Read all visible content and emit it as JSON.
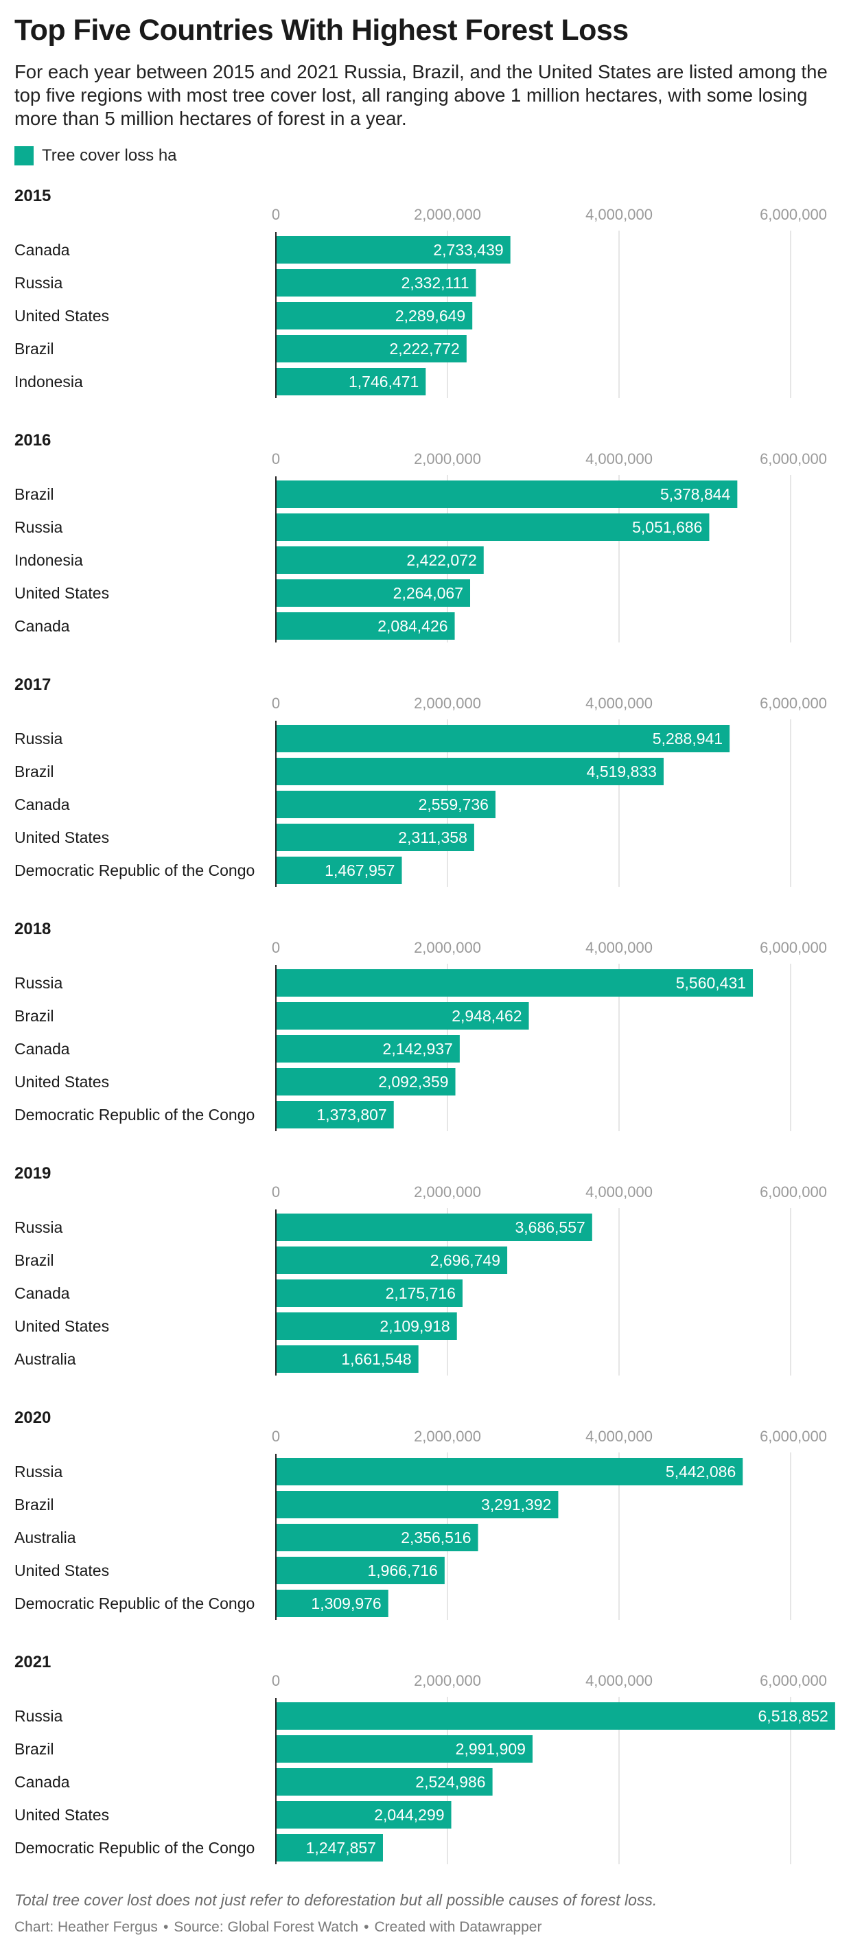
{
  "title": "Top Five Countries With Highest Forest Loss",
  "subtitle": "For each year between 2015 and 2021 Russia, Brazil, and the United States are listed among the top five regions with most tree cover lost, all ranging above 1 million hectares, with some losing more than 5 million hectares of forest in a year.",
  "legend": {
    "label": "Tree cover loss ha",
    "color": "#0aac91"
  },
  "footnote": "Total tree cover lost does not just refer to deforestation but all possible causes of forest loss.",
  "credits": {
    "chart": "Chart: Heather Fergus",
    "source": "Source: Global Forest Watch",
    "tool": "Created with Datawrapper",
    "separator": "•"
  },
  "chart_data": [
    {
      "type": "bar",
      "title": "2015",
      "xlim": [
        0,
        6000000
      ],
      "ticks": [
        0,
        2000000,
        4000000,
        6000000
      ],
      "tick_labels": [
        "0",
        "2,000,000",
        "4,000,000",
        "6,000,000"
      ],
      "categories": [
        "Canada",
        "Russia",
        "United States",
        "Brazil",
        "Indonesia"
      ],
      "values": [
        2733439,
        2332111,
        2289649,
        2222772,
        1746471
      ],
      "value_labels": [
        "2,733,439",
        "2,332,111",
        "2,289,649",
        "2,222,772",
        "1,746,471"
      ]
    },
    {
      "type": "bar",
      "title": "2016",
      "xlim": [
        0,
        6000000
      ],
      "ticks": [
        0,
        2000000,
        4000000,
        6000000
      ],
      "tick_labels": [
        "0",
        "2,000,000",
        "4,000,000",
        "6,000,000"
      ],
      "categories": [
        "Brazil",
        "Russia",
        "Indonesia",
        "United States",
        "Canada"
      ],
      "values": [
        5378844,
        5051686,
        2422072,
        2264067,
        2084426
      ],
      "value_labels": [
        "5,378,844",
        "5,051,686",
        "2,422,072",
        "2,264,067",
        "2,084,426"
      ]
    },
    {
      "type": "bar",
      "title": "2017",
      "xlim": [
        0,
        6000000
      ],
      "ticks": [
        0,
        2000000,
        4000000,
        6000000
      ],
      "tick_labels": [
        "0",
        "2,000,000",
        "4,000,000",
        "6,000,000"
      ],
      "categories": [
        "Russia",
        "Brazil",
        "Canada",
        "United States",
        "Democratic Republic of the Congo"
      ],
      "values": [
        5288941,
        4519833,
        2559736,
        2311358,
        1467957
      ],
      "value_labels": [
        "5,288,941",
        "4,519,833",
        "2,559,736",
        "2,311,358",
        "1,467,957"
      ]
    },
    {
      "type": "bar",
      "title": "2018",
      "xlim": [
        0,
        6000000
      ],
      "ticks": [
        0,
        2000000,
        4000000,
        6000000
      ],
      "tick_labels": [
        "0",
        "2,000,000",
        "4,000,000",
        "6,000,000"
      ],
      "categories": [
        "Russia",
        "Brazil",
        "Canada",
        "United States",
        "Democratic Republic of the Congo"
      ],
      "values": [
        5560431,
        2948462,
        2142937,
        2092359,
        1373807
      ],
      "value_labels": [
        "5,560,431",
        "2,948,462",
        "2,142,937",
        "2,092,359",
        "1,373,807"
      ]
    },
    {
      "type": "bar",
      "title": "2019",
      "xlim": [
        0,
        6000000
      ],
      "ticks": [
        0,
        2000000,
        4000000,
        6000000
      ],
      "tick_labels": [
        "0",
        "2,000,000",
        "4,000,000",
        "6,000,000"
      ],
      "categories": [
        "Russia",
        "Brazil",
        "Canada",
        "United States",
        "Australia"
      ],
      "values": [
        3686557,
        2696749,
        2175716,
        2109918,
        1661548
      ],
      "value_labels": [
        "3,686,557",
        "2,696,749",
        "2,175,716",
        "2,109,918",
        "1,661,548"
      ]
    },
    {
      "type": "bar",
      "title": "2020",
      "xlim": [
        0,
        6000000
      ],
      "ticks": [
        0,
        2000000,
        4000000,
        6000000
      ],
      "tick_labels": [
        "0",
        "2,000,000",
        "4,000,000",
        "6,000,000"
      ],
      "categories": [
        "Russia",
        "Brazil",
        "Australia",
        "United States",
        "Democratic Republic of the Congo"
      ],
      "values": [
        5442086,
        3291392,
        2356516,
        1966716,
        1309976
      ],
      "value_labels": [
        "5,442,086",
        "3,291,392",
        "2,356,516",
        "1,966,716",
        "1,309,976"
      ]
    },
    {
      "type": "bar",
      "title": "2021",
      "xlim": [
        0,
        6000000
      ],
      "ticks": [
        0,
        2000000,
        4000000,
        6000000
      ],
      "tick_labels": [
        "0",
        "2,000,000",
        "4,000,000",
        "6,000,000"
      ],
      "categories": [
        "Russia",
        "Brazil",
        "Canada",
        "United States",
        "Democratic Republic of the Congo"
      ],
      "values": [
        6518852,
        2991909,
        2524986,
        2044299,
        1247857
      ],
      "value_labels": [
        "6,518,852",
        "2,991,909",
        "2,524,986",
        "2,044,299",
        "1,247,857"
      ]
    }
  ]
}
